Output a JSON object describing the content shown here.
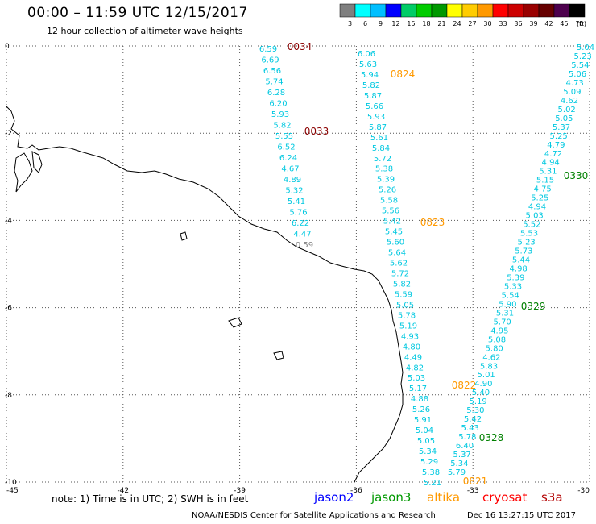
{
  "header": {
    "title": "00:00 – 11:59 UTC 12/15/2017",
    "subtitle": "12 hour collection of altimeter wave heights"
  },
  "color_scale": {
    "ticks": [
      "3",
      "6",
      "9",
      "12",
      "15",
      "18",
      "21",
      "24",
      "27",
      "30",
      "33",
      "36",
      "39",
      "42",
      "45",
      "70"
    ],
    "unit": "(ft)",
    "colors": [
      "#7f7f7f",
      "#00ffff",
      "#00bfff",
      "#0000ff",
      "#00cc66",
      "#00cc00",
      "#009900",
      "#ffff00",
      "#ffcc00",
      "#ff9900",
      "#ff0000",
      "#cc0000",
      "#990000",
      "#660000",
      "#4d004d",
      "#000000"
    ]
  },
  "map": {
    "lon_range": [
      -45,
      -30
    ],
    "lat_range": [
      -10,
      0
    ],
    "x_ticks": [
      "-45",
      "-42",
      "-39",
      "-36",
      "-33",
      "-30"
    ],
    "y_ticks": [
      "0",
      "-2",
      "-4",
      "-6",
      "-8",
      "-10"
    ],
    "passes": [
      {
        "color": "#00c8e0",
        "values": [
          "6.59",
          "6.69",
          "6.56",
          "5.74",
          "6.28",
          "6.20",
          "5.93",
          "5.82",
          "5.55",
          "6.52",
          "6.24",
          "4.67",
          "4.89",
          "5.32",
          "5.41",
          "5.76",
          "6.22",
          "4.47",
          "0.59"
        ]
      },
      {
        "color": "#00c8e0",
        "values": [
          "6.06",
          "5.63",
          "5.94",
          "5.82",
          "5.87",
          "5.66",
          "5.93",
          "5.87",
          "5.61",
          "5.84",
          "5.72",
          "5.38",
          "5.39",
          "5.26",
          "5.58",
          "5.56",
          "5.42",
          "5.45",
          "5.60",
          "5.64",
          "5.62",
          "5.72",
          "5.82",
          "5.59",
          "5.05",
          "5.78",
          "5.19",
          "4.93",
          "4.80",
          "4.49",
          "4.82",
          "5.03",
          "5.17",
          "4.88",
          "5.26",
          "5.91",
          "5.04",
          "5.05",
          "5.34",
          "5.29",
          "5.38",
          "5.21"
        ]
      },
      {
        "color": "#00c8e0",
        "values": [
          "5.04",
          "5.23",
          "5.54",
          "5.06",
          "4.73",
          "5.09",
          "4.62",
          "5.02",
          "5.05",
          "5.37",
          "5.25",
          "4.79",
          "4.72",
          "4.94",
          "5.31",
          "5.15",
          "4.75",
          "5.25",
          "4.94",
          "5.03",
          "5.52",
          "5.53",
          "5.23",
          "5.73",
          "5.44",
          "4.98",
          "5.39",
          "5.33",
          "5.54",
          "5.90",
          "5.31",
          "5.70",
          "4.95",
          "5.08",
          "5.80",
          "4.62",
          "5.83",
          "5.01",
          "4.90",
          "5.40",
          "5.19",
          "5.30",
          "5.42",
          "5.43",
          "5.78",
          "6.40",
          "5.37",
          "5.34",
          "5.79"
        ]
      }
    ],
    "time_labels": [
      {
        "text": "0034",
        "color": "#8b0000"
      },
      {
        "text": "0033",
        "color": "#8b0000"
      },
      {
        "text": "0824",
        "color": "#ff9900"
      },
      {
        "text": "0823",
        "color": "#ff9900"
      },
      {
        "text": "0822",
        "color": "#ff9900"
      },
      {
        "text": "0821",
        "color": "#ff9900"
      },
      {
        "text": "0330",
        "color": "#008000"
      },
      {
        "text": "0329",
        "color": "#008000"
      },
      {
        "text": "0328",
        "color": "#008000"
      }
    ]
  },
  "footer": {
    "note": "note: 1) Time is in UTC; 2) SWH is in feet",
    "satellites": [
      {
        "name": "jason2",
        "color": "#0000ff"
      },
      {
        "name": "jason3",
        "color": "#009900"
      },
      {
        "name": "altika",
        "color": "#ff9900"
      },
      {
        "name": "cryosat",
        "color": "#ff0000"
      },
      {
        "name": "s3a",
        "color": "#b30000"
      }
    ],
    "credit": "NOAA/NESDIS Center for Satellite Applications and Research",
    "timestamp": "Dec 16 13:27:15 UTC 2017"
  }
}
